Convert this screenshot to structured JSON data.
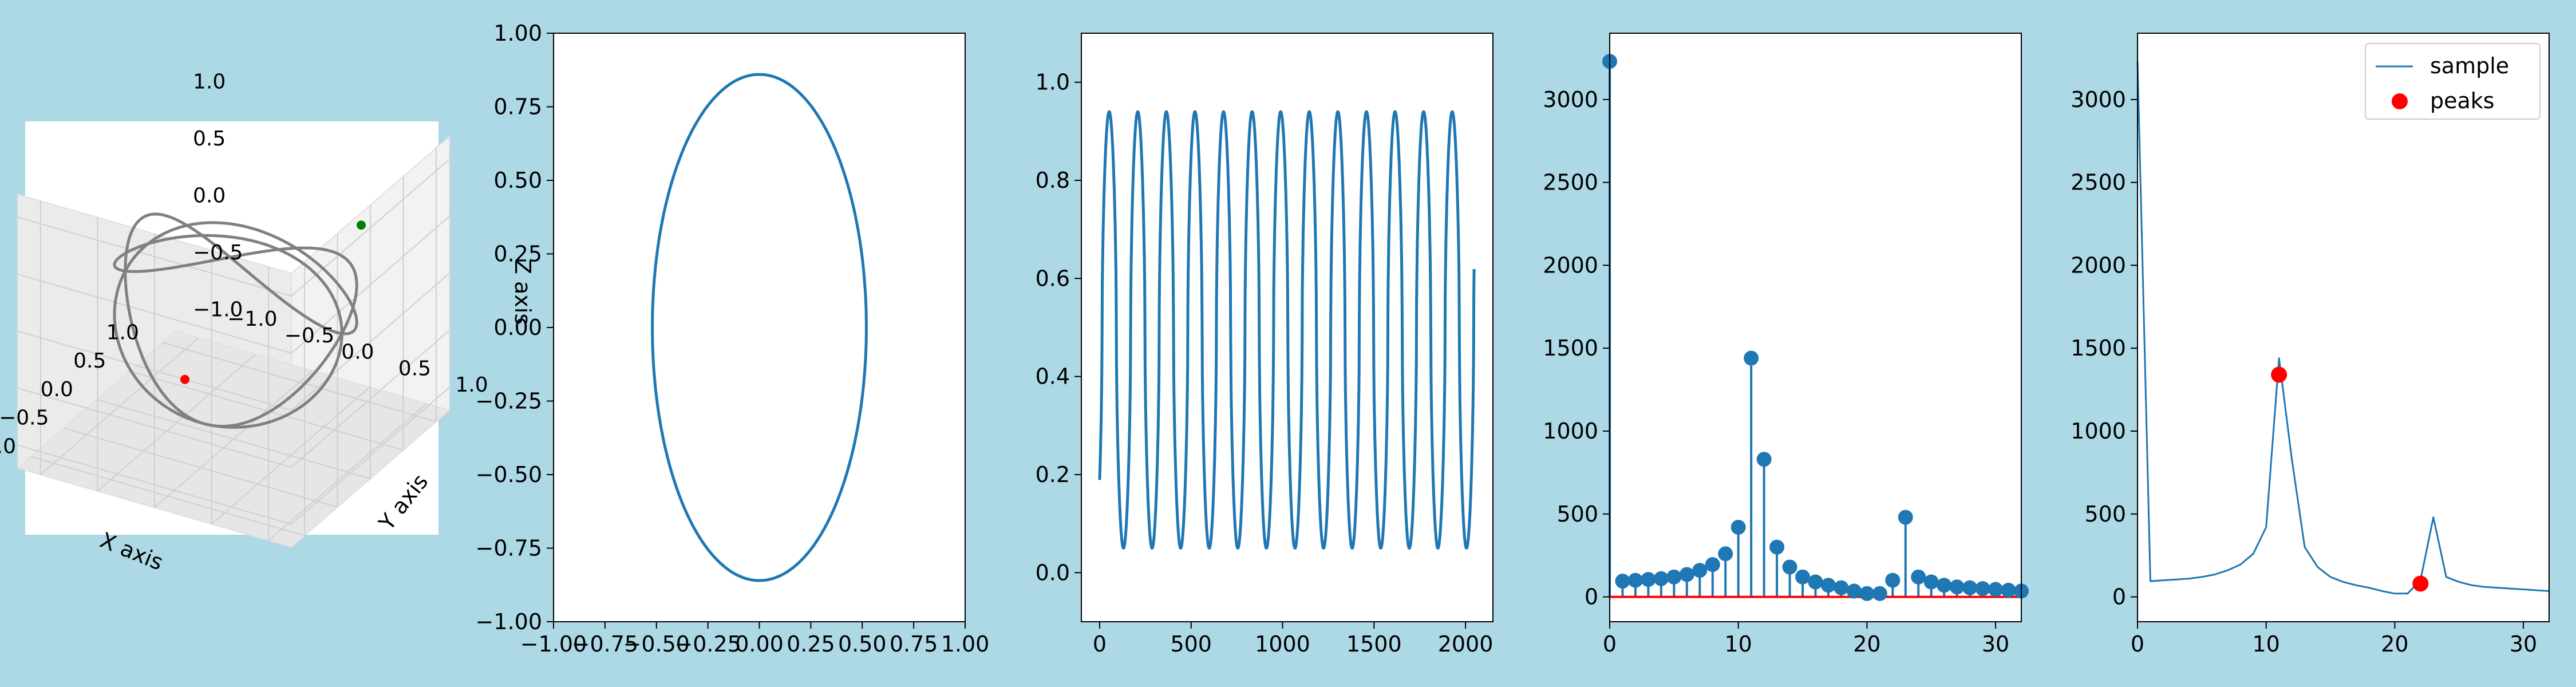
{
  "figure": {
    "background": "#add8e6",
    "line_color": "#1f77b4",
    "orbit_color": "#808080",
    "peak_color": "#ff0000"
  },
  "chart_data": [
    {
      "type": "line3d",
      "xlabel": "X axis",
      "ylabel": "Y axis",
      "zlabel": "Z axis",
      "xlim": [
        -1.2,
        1.2
      ],
      "ylim": [
        -1.2,
        1.2
      ],
      "zlim": [
        -1.2,
        1.2
      ],
      "xticks": [
        "−1.0",
        "−0.5",
        "0.0",
        "0.5",
        "1.0"
      ],
      "yticks": [
        "−1.0",
        "−0.5",
        "0.0",
        "0.5",
        "1.0"
      ],
      "zticks": [
        "−1.0",
        "−0.5",
        "0.0",
        "0.5",
        "1.0"
      ],
      "curve": "closed orbit on unit sphere",
      "points": [
        {
          "name": "red point",
          "color": "#ff0000",
          "xyz": [
            0.3,
            -0.6,
            -1.0
          ]
        },
        {
          "name": "green point",
          "color": "#008000",
          "xyz": [
            0.9,
            0.6,
            0.4
          ]
        }
      ]
    },
    {
      "type": "line",
      "xlim": [
        -1,
        1
      ],
      "ylim": [
        -1,
        1
      ],
      "xticks": [
        "−1.00",
        "−0.75",
        "−0.50",
        "−0.25",
        "0.00",
        "0.25",
        "0.50",
        "0.75",
        "1.00"
      ],
      "xtick_values": [
        -1,
        -0.75,
        -0.5,
        -0.25,
        0,
        0.25,
        0.5,
        0.75,
        1
      ],
      "yticks": [
        "−1.00",
        "−0.75",
        "−0.50",
        "−0.25",
        "0.00",
        "0.25",
        "0.50",
        "0.75",
        "1.00"
      ],
      "ytick_values": [
        -1,
        -0.75,
        -0.5,
        -0.25,
        0,
        0.25,
        0.5,
        0.75,
        1
      ],
      "ellipse": {
        "rx": 0.52,
        "ry": 0.86
      }
    },
    {
      "type": "line",
      "xlim": [
        -100,
        2150
      ],
      "ylim": [
        -0.1,
        1.1
      ],
      "xticks": [
        "0",
        "500",
        "1000",
        "1500",
        "2000"
      ],
      "xtick_values": [
        0,
        500,
        1000,
        1500,
        2000
      ],
      "yticks": [
        "0.0",
        "0.2",
        "0.4",
        "0.6",
        "0.8",
        "1.0"
      ],
      "ytick_values": [
        0,
        0.2,
        0.4,
        0.6,
        0.8,
        1.0
      ],
      "signal": {
        "n": 2048,
        "cycles": 13.1,
        "min": 0.05,
        "max": 0.94,
        "start": 0.27,
        "end": 0.68
      }
    },
    {
      "type": "stem",
      "xlim": [
        0,
        32
      ],
      "ylim": [
        -150,
        3400
      ],
      "xticks": [
        "0",
        "10",
        "20",
        "30"
      ],
      "xtick_values": [
        0,
        10,
        20,
        30
      ],
      "yticks": [
        "0",
        "500",
        "1000",
        "1500",
        "2000",
        "2500",
        "3000"
      ],
      "ytick_values": [
        0,
        500,
        1000,
        1500,
        2000,
        2500,
        3000
      ],
      "x": [
        0,
        1,
        2,
        3,
        4,
        5,
        6,
        7,
        8,
        9,
        10,
        11,
        12,
        13,
        14,
        15,
        16,
        17,
        18,
        19,
        20,
        21,
        22,
        23,
        24,
        25,
        26,
        27,
        28,
        29,
        30,
        31,
        32
      ],
      "values": [
        3230,
        95,
        100,
        105,
        110,
        120,
        135,
        160,
        195,
        260,
        420,
        1440,
        830,
        300,
        180,
        120,
        90,
        70,
        55,
        35,
        20,
        20,
        100,
        480,
        120,
        90,
        70,
        60,
        55,
        50,
        45,
        40,
        35
      ]
    },
    {
      "type": "line",
      "xlim": [
        0,
        32
      ],
      "ylim": [
        -150,
        3400
      ],
      "xticks": [
        "0",
        "10",
        "20",
        "30"
      ],
      "xtick_values": [
        0,
        10,
        20,
        30
      ],
      "yticks": [
        "0",
        "500",
        "1000",
        "1500",
        "2000",
        "2500",
        "3000"
      ],
      "ytick_values": [
        0,
        500,
        1000,
        1500,
        2000,
        2500,
        3000
      ],
      "legend": {
        "placement": "top-right",
        "entries": [
          "sample",
          "peaks"
        ]
      },
      "series": [
        {
          "name": "sample",
          "x": [
            0,
            1,
            2,
            3,
            4,
            5,
            6,
            7,
            8,
            9,
            10,
            11,
            12,
            13,
            14,
            15,
            16,
            17,
            18,
            19,
            20,
            21,
            22,
            23,
            24,
            25,
            26,
            27,
            28,
            29,
            30,
            31,
            32
          ],
          "values": [
            3230,
            95,
            100,
            105,
            110,
            120,
            135,
            160,
            195,
            260,
            420,
            1440,
            830,
            300,
            180,
            120,
            90,
            70,
            55,
            35,
            20,
            20,
            100,
            480,
            120,
            90,
            70,
            60,
            55,
            50,
            45,
            40,
            35
          ]
        },
        {
          "name": "peaks",
          "x": [
            11,
            22
          ],
          "values": [
            1340,
            80
          ]
        }
      ]
    }
  ]
}
